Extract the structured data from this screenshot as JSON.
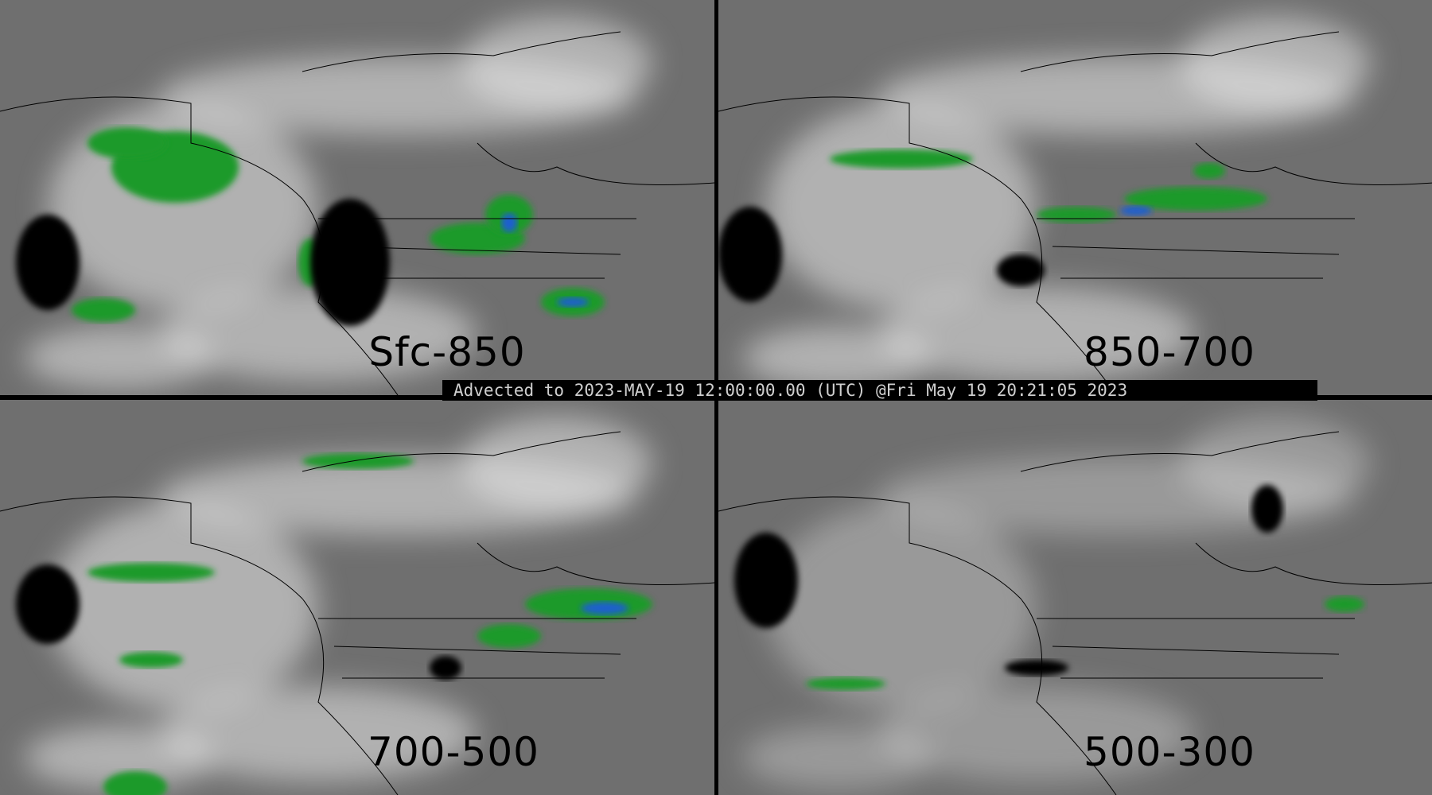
{
  "caption": "Advected to 2023-MAY-19 12:00:00.00 (UTC) @Fri May 19 20:21:05 2023",
  "panels": [
    {
      "label": "Sfc-850"
    },
    {
      "label": "850-700"
    },
    {
      "label": "700-500"
    },
    {
      "label": "500-300"
    }
  ],
  "colors": {
    "background": "#6f6f6f",
    "moist_light": "#e8e8e8",
    "precip_green": "#1f9a2a",
    "precip_blue": "#1e5fd0",
    "mask": "#000000"
  }
}
